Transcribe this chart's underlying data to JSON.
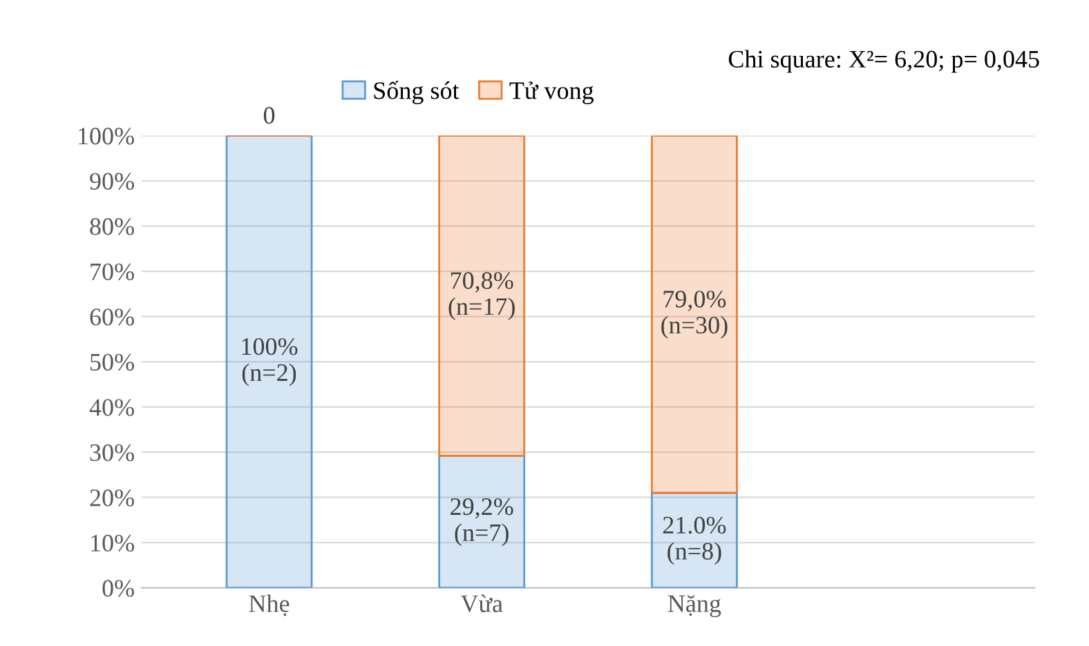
{
  "chart_data": {
    "type": "bar",
    "stacked": true,
    "categories": [
      "Nhẹ",
      "Vừa",
      "Nặng",
      null
    ],
    "series": [
      {
        "name": "Sống sót",
        "color": "#5b9bd5",
        "values": [
          100,
          29.2,
          21.0,
          null
        ],
        "value_labels": [
          "100%\n(n=2)",
          "29,2%\n(n=7)",
          "21.0%\n(n=8)",
          null
        ]
      },
      {
        "name": "Tử vong",
        "color": "#ed7d31",
        "values": [
          0,
          70.8,
          79.0,
          null
        ],
        "value_labels": [
          "0",
          "70,8%\n(n=17)",
          "79,0%\n(n=30)",
          null
        ]
      }
    ],
    "ylim": [
      0,
      100
    ],
    "yticks": [
      {
        "value": 0,
        "label": "0%"
      },
      {
        "value": 10,
        "label": "10%"
      },
      {
        "value": 20,
        "label": "20%"
      },
      {
        "value": 30,
        "label": "30%"
      },
      {
        "value": 40,
        "label": "40%"
      },
      {
        "value": 50,
        "label": "50%"
      },
      {
        "value": 60,
        "label": "60%"
      },
      {
        "value": 70,
        "label": "70%"
      },
      {
        "value": 80,
        "label": "80%"
      },
      {
        "value": 90,
        "label": "90%"
      },
      {
        "value": 100,
        "label": "100%"
      }
    ],
    "grid": "y",
    "legend": "top",
    "annotations": [
      "Chi square: X²= 6,20; p= 0,045"
    ]
  }
}
